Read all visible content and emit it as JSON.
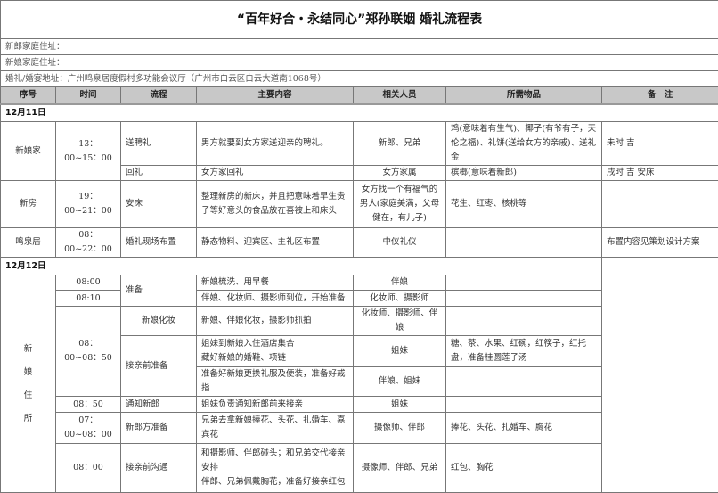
{
  "title": "“百年好合・永结同心”郑孙联姻 婚礼流程表",
  "info": {
    "groom_address": "新郎家庭住址：",
    "bride_address": "新娘家庭住址：",
    "venue": "婚礼/婚宴地址：广州鸣泉居度假村多功能会议厅（广州市白云区白云大道南1068号）"
  },
  "headers": [
    "序号",
    "时间",
    "流程",
    "主要内容",
    "相关人员",
    "所需物品",
    "备　注"
  ],
  "day1": {
    "date": "12月11日",
    "rows": [
      {
        "place": "新娘家",
        "time": "13：00~15：00",
        "step": "送聘礼",
        "content": "男方就要到女方家送迎亲的聘礼。",
        "people": "新郎、兄弟",
        "items": "鸡(意味着有生气)、椰子(有爷有子，天伦之福)、礼饼(送给女方的亲戚)、送礼金",
        "note": "未时 吉"
      },
      {
        "step": "回礼",
        "content": "女方家回礼",
        "people": "女方家属",
        "items": "槟榔(意味着新郎)",
        "note": "戌时 吉 安床"
      },
      {
        "place": "新房",
        "time": "19：00~21：00",
        "step": "安床",
        "content": "整理新房的新床，并且把意味着早生贵子等好意头的食品放在喜被上和床头",
        "people": "女方找一个有福气的男人(家庭美满，父母健在，有儿子)",
        "items": "花生、红枣、核桃等",
        "note": ""
      },
      {
        "place": "鸣泉居",
        "time": "08：00~22：00",
        "step": "婚礼现场布置",
        "content": "静态物料、迎宾区、主礼区布置",
        "people": "中仪礼仪",
        "items": "",
        "note": "布置内容见策划设计方案"
      }
    ]
  },
  "day2": {
    "date": "12月12日",
    "place": [
      "新",
      "娘",
      "住",
      "所"
    ],
    "r1": {
      "time": "08:00",
      "step": "准备",
      "content": "新娘梳洗、用早餐",
      "people": "伴娘"
    },
    "r2": {
      "time": "08:10",
      "content": "伴娘、化妆师、摄影师到位，开始准备",
      "people": "化妆师、摄影师"
    },
    "r3": {
      "time": "08：00~08：50",
      "step": "新娘化妆",
      "content": "新娘、伴娘化妆，摄影师抓拍",
      "people": "化妆师、摄影师、伴娘"
    },
    "r4": {
      "step": "接亲前准备",
      "content1": "姐妹到新娘入住酒店集合",
      "content2": "藏好新娘的婚鞋、项链",
      "people": "姐妹",
      "items": "糖、茶、水果、红碗，红筷子，红托盘，准备桂圆莲子汤"
    },
    "r5": {
      "content": "准备好新娘更换礼服及便装，准备好戒指",
      "people": "伴娘、姐妹"
    },
    "r6": {
      "time": "08：50",
      "step": "通知新郎",
      "content": "姐妹负责通知新郎前来接亲",
      "people": "姐妹"
    },
    "r7": {
      "time": "07：00~08：00",
      "step": "新郎方准备",
      "content": "兄弟去拿新娘捧花、头花、扎婚车、嘉宾花",
      "people": "摄像师、伴郎",
      "items": "捧花、头花、扎婚车、胸花"
    },
    "r8": {
      "time": "08：00",
      "step": "接亲前沟通",
      "content1": "和摄影师、伴郎碰头；和兄弟交代接亲安排",
      "content2": "伴郎、兄弟佩戴胸花，准备好接亲红包",
      "people": "摄像师、伴郎、兄弟",
      "items": "红包、胸花"
    }
  }
}
